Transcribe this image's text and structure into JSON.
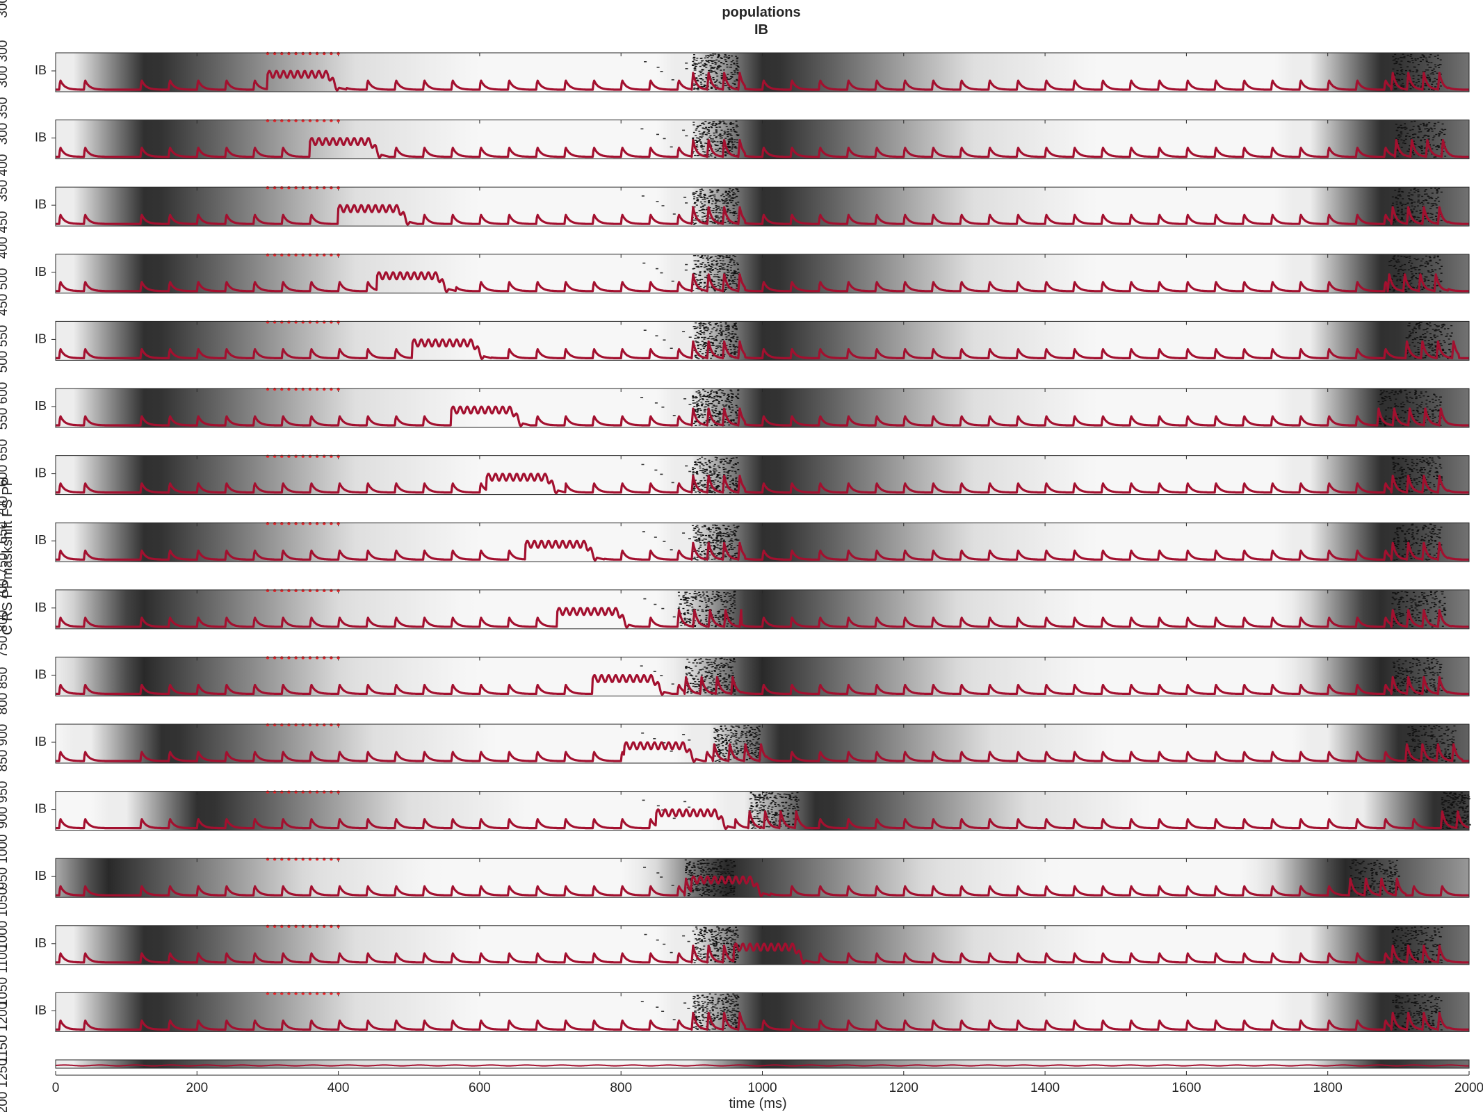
{
  "chart_data": {
    "type": "line",
    "title": "populations",
    "subtitle": "IB",
    "xlabel": "time (ms)",
    "ylabel": "C RS PPmaskshift FS PP",
    "panel_label": "IB",
    "xlim": [
      0,
      2000
    ],
    "x_ticks": [
      "0",
      "200",
      "400",
      "600",
      "800",
      "1000",
      "1200",
      "1400",
      "1600",
      "1800",
      "2000"
    ],
    "left_tick_strings": [
      "300",
      "300 300",
      "300 350",
      "350 400",
      "400 450",
      "450 500",
      "500 550",
      "550 600",
      "600 650",
      "650 700",
      "700 750",
      "750 800",
      "800 850",
      "850 900",
      "900 950",
      "950 1000",
      "1000 1050",
      "1050 1100",
      "1150 1200",
      "1200 1250"
    ],
    "stim_marker": {
      "start": 300,
      "end": 400,
      "count": 11,
      "color": "#e8262b"
    },
    "trace_color": "#a3102f",
    "pulse_duration": 100,
    "rhythm_spike_times": [
      5,
      40
    ],
    "background_period": 875,
    "panels": [
      {
        "shift": 300,
        "pulse_onset": 300,
        "beta_burst": [
          900,
          965
        ],
        "late_burst": [
          1890,
          1960
        ],
        "bg_phase": 0
      },
      {
        "shift": 350,
        "pulse_onset": 360,
        "beta_burst": [
          900,
          965
        ],
        "late_burst": [
          1895,
          1965
        ],
        "bg_phase": 0
      },
      {
        "shift": 400,
        "pulse_onset": 400,
        "beta_burst": [
          900,
          965
        ],
        "late_burst": [
          1890,
          1960
        ],
        "bg_phase": 0
      },
      {
        "shift": 450,
        "pulse_onset": 455,
        "beta_burst": [
          900,
          965
        ],
        "late_burst": [
          1885,
          1960
        ],
        "bg_phase": 0
      },
      {
        "shift": 500,
        "pulse_onset": 505,
        "beta_burst": [
          900,
          965
        ],
        "late_burst": [
          1910,
          1975
        ],
        "bg_phase": 0
      },
      {
        "shift": 550,
        "pulse_onset": 560,
        "beta_burst": [
          900,
          965
        ],
        "late_burst": [
          1870,
          1960
        ],
        "bg_phase": 0
      },
      {
        "shift": 600,
        "pulse_onset": 610,
        "beta_burst": [
          900,
          965
        ],
        "late_burst": [
          1890,
          1960
        ],
        "bg_phase": 0
      },
      {
        "shift": 650,
        "pulse_onset": 665,
        "beta_burst": [
          900,
          965
        ],
        "late_burst": [
          1890,
          1960
        ],
        "bg_phase": 0
      },
      {
        "shift": 700,
        "pulse_onset": 710,
        "beta_burst": [
          880,
          960
        ],
        "late_burst": [
          1890,
          1965
        ],
        "bg_phase": -15
      },
      {
        "shift": 750,
        "pulse_onset": 760,
        "beta_burst": [
          890,
          960
        ],
        "late_burst": [
          1890,
          1960
        ],
        "bg_phase": -10
      },
      {
        "shift": 800,
        "pulse_onset": 805,
        "beta_burst": [
          930,
          995
        ],
        "late_burst": [
          1910,
          1980
        ],
        "bg_phase": 25
      },
      {
        "shift": 850,
        "pulse_onset": 850,
        "beta_burst": [
          980,
          1050
        ],
        "late_burst": [
          1960,
          2000
        ],
        "bg_phase": 75
      },
      {
        "shift": 900,
        "pulse_onset": 900,
        "beta_burst": [
          890,
          960
        ],
        "late_burst": [
          1830,
          1900
        ],
        "bg_phase": -60
      },
      {
        "shift": 950,
        "pulse_onset": 960,
        "beta_burst": [
          900,
          965
        ],
        "late_burst": [
          1890,
          1960
        ],
        "bg_phase": 0
      },
      {
        "shift": 1000,
        "pulse_onset": null,
        "beta_burst": [
          900,
          965
        ],
        "late_burst": [
          1890,
          1960
        ],
        "bg_phase": 0
      },
      {
        "shift": 1050,
        "pulse_onset": null,
        "beta_burst": [],
        "late_burst": [],
        "bg_phase": 0,
        "partial": true
      }
    ]
  }
}
